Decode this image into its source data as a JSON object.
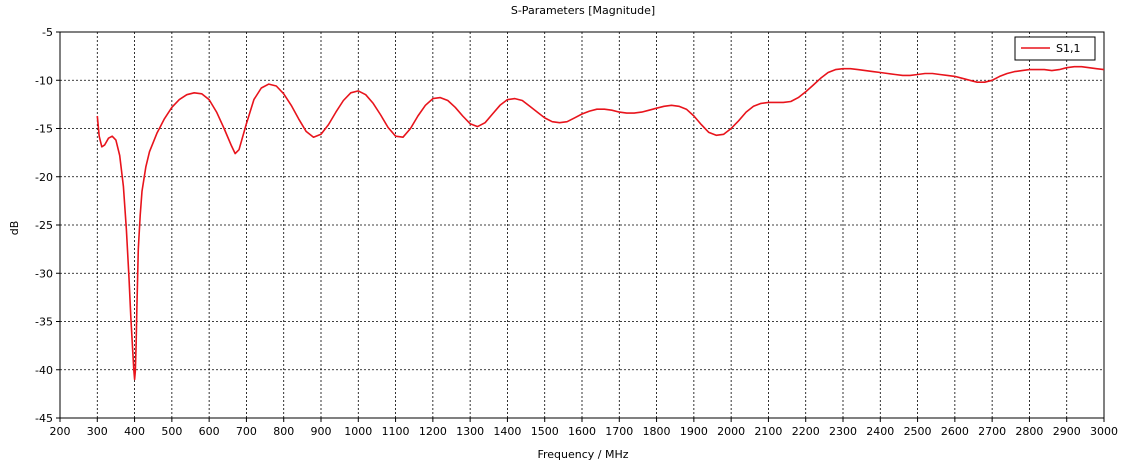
{
  "chart_data": {
    "type": "line",
    "title": "S-Parameters [Magnitude]",
    "xlabel": "Frequency / MHz",
    "ylabel": "dB",
    "xlim": [
      200,
      3000
    ],
    "ylim": [
      -45,
      -5
    ],
    "xticks": [
      200,
      300,
      400,
      500,
      600,
      700,
      800,
      900,
      1000,
      1100,
      1200,
      1300,
      1400,
      1500,
      1600,
      1700,
      1800,
      1900,
      2000,
      2100,
      2200,
      2300,
      2400,
      2500,
      2600,
      2700,
      2800,
      2900,
      3000
    ],
    "yticks": [
      -5,
      -10,
      -15,
      -20,
      -25,
      -30,
      -35,
      -40,
      -45
    ],
    "grid": true,
    "legend_position": "top-right",
    "series": [
      {
        "name": "S1,1",
        "color": "#e8141c",
        "x": [
          300,
          305,
          312,
          320,
          330,
          340,
          350,
          360,
          370,
          378,
          385,
          390,
          395,
          398,
          400,
          402,
          404,
          406,
          408,
          410,
          415,
          420,
          430,
          440,
          460,
          480,
          500,
          520,
          540,
          560,
          580,
          600,
          620,
          640,
          660,
          670,
          680,
          700,
          720,
          740,
          760,
          780,
          800,
          820,
          840,
          860,
          880,
          900,
          920,
          940,
          960,
          980,
          1000,
          1020,
          1040,
          1060,
          1080,
          1100,
          1120,
          1140,
          1160,
          1180,
          1200,
          1220,
          1240,
          1260,
          1280,
          1300,
          1320,
          1340,
          1360,
          1380,
          1400,
          1420,
          1440,
          1460,
          1480,
          1500,
          1520,
          1540,
          1560,
          1580,
          1600,
          1620,
          1640,
          1660,
          1680,
          1700,
          1720,
          1740,
          1760,
          1780,
          1800,
          1820,
          1840,
          1860,
          1880,
          1900,
          1920,
          1940,
          1960,
          1980,
          2000,
          2020,
          2040,
          2060,
          2080,
          2100,
          2120,
          2140,
          2160,
          2180,
          2200,
          2220,
          2240,
          2260,
          2280,
          2300,
          2320,
          2340,
          2360,
          2380,
          2400,
          2420,
          2440,
          2460,
          2480,
          2500,
          2520,
          2540,
          2560,
          2580,
          2600,
          2620,
          2640,
          2660,
          2680,
          2700,
          2720,
          2740,
          2760,
          2780,
          2800,
          2820,
          2840,
          2860,
          2880,
          2900,
          2920,
          2940,
          2960,
          2980,
          3000
        ],
        "y": [
          -13.7,
          -15.8,
          -16.9,
          -16.7,
          -16.0,
          -15.8,
          -16.2,
          -17.8,
          -21.0,
          -25.5,
          -30.5,
          -34.5,
          -38.0,
          -40.0,
          -41.0,
          -40.2,
          -37.5,
          -34.0,
          -30.5,
          -27.5,
          -24.0,
          -21.5,
          -19.0,
          -17.4,
          -15.5,
          -14.0,
          -12.8,
          -12.0,
          -11.5,
          -11.3,
          -11.4,
          -12.0,
          -13.3,
          -15.0,
          -16.8,
          -17.6,
          -17.2,
          -14.5,
          -12.0,
          -10.8,
          -10.4,
          -10.6,
          -11.4,
          -12.6,
          -14.0,
          -15.3,
          -15.9,
          -15.6,
          -14.6,
          -13.3,
          -12.1,
          -11.3,
          -11.1,
          -11.5,
          -12.4,
          -13.6,
          -14.9,
          -15.8,
          -15.9,
          -15.0,
          -13.7,
          -12.6,
          -11.9,
          -11.8,
          -12.1,
          -12.8,
          -13.7,
          -14.5,
          -14.8,
          -14.4,
          -13.5,
          -12.6,
          -12.0,
          -11.9,
          -12.1,
          -12.7,
          -13.3,
          -13.9,
          -14.3,
          -14.4,
          -14.3,
          -13.9,
          -13.5,
          -13.2,
          -13.0,
          -13.0,
          -13.1,
          -13.3,
          -13.4,
          -13.4,
          -13.3,
          -13.1,
          -12.9,
          -12.7,
          -12.6,
          -12.7,
          -13.0,
          -13.7,
          -14.6,
          -15.4,
          -15.7,
          -15.6,
          -15.0,
          -14.2,
          -13.3,
          -12.7,
          -12.4,
          -12.3,
          -12.3,
          -12.3,
          -12.2,
          -11.8,
          -11.2,
          -10.5,
          -9.8,
          -9.2,
          -8.9,
          -8.8,
          -8.8,
          -8.9,
          -9.0,
          -9.1,
          -9.2,
          -9.3,
          -9.4,
          -9.5,
          -9.5,
          -9.4,
          -9.3,
          -9.3,
          -9.4,
          -9.5,
          -9.6,
          -9.8,
          -10.0,
          -10.2,
          -10.2,
          -10.0,
          -9.6,
          -9.3,
          -9.1,
          -9.0,
          -8.9,
          -8.9,
          -8.9,
          -9.0,
          -8.9,
          -8.7,
          -8.6,
          -8.6,
          -8.7,
          -8.8,
          -8.9
        ]
      }
    ]
  }
}
